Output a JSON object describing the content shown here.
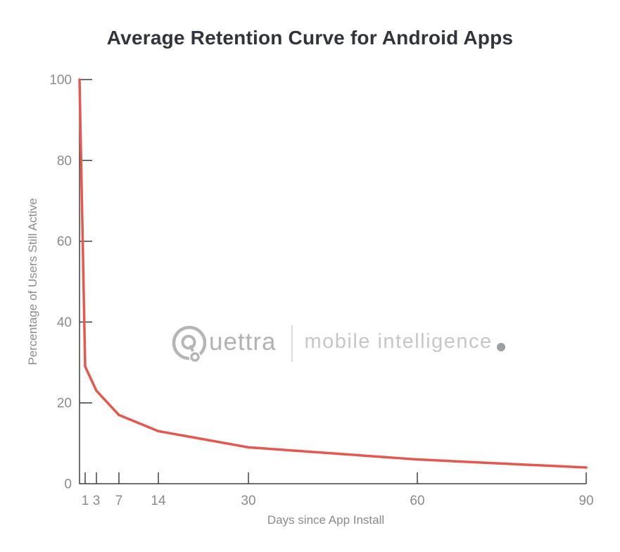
{
  "chart_data": {
    "type": "line",
    "title": "Average Retention Curve for Android Apps",
    "xlabel": "Days since App Install",
    "ylabel": "Percentage of Users Still Active",
    "x": [
      0,
      1,
      3,
      7,
      14,
      30,
      60,
      90
    ],
    "values": [
      100,
      29,
      23,
      17,
      13,
      9,
      6,
      4
    ],
    "xlim": [
      0,
      90
    ],
    "ylim": [
      0,
      100
    ],
    "xticks": [
      1,
      3,
      7,
      14,
      30,
      60,
      90
    ],
    "yticks": [
      0,
      20,
      40,
      60,
      80,
      100
    ],
    "grid": false,
    "legend": "none",
    "line_color": "#e8564e"
  },
  "colors": {
    "axis": "#3f3f3f",
    "tick_label": "#8b8b8b",
    "title": "#31353b"
  },
  "watermark": {
    "wordmark_text": "uettra",
    "tagline": "mobile intelligence"
  }
}
